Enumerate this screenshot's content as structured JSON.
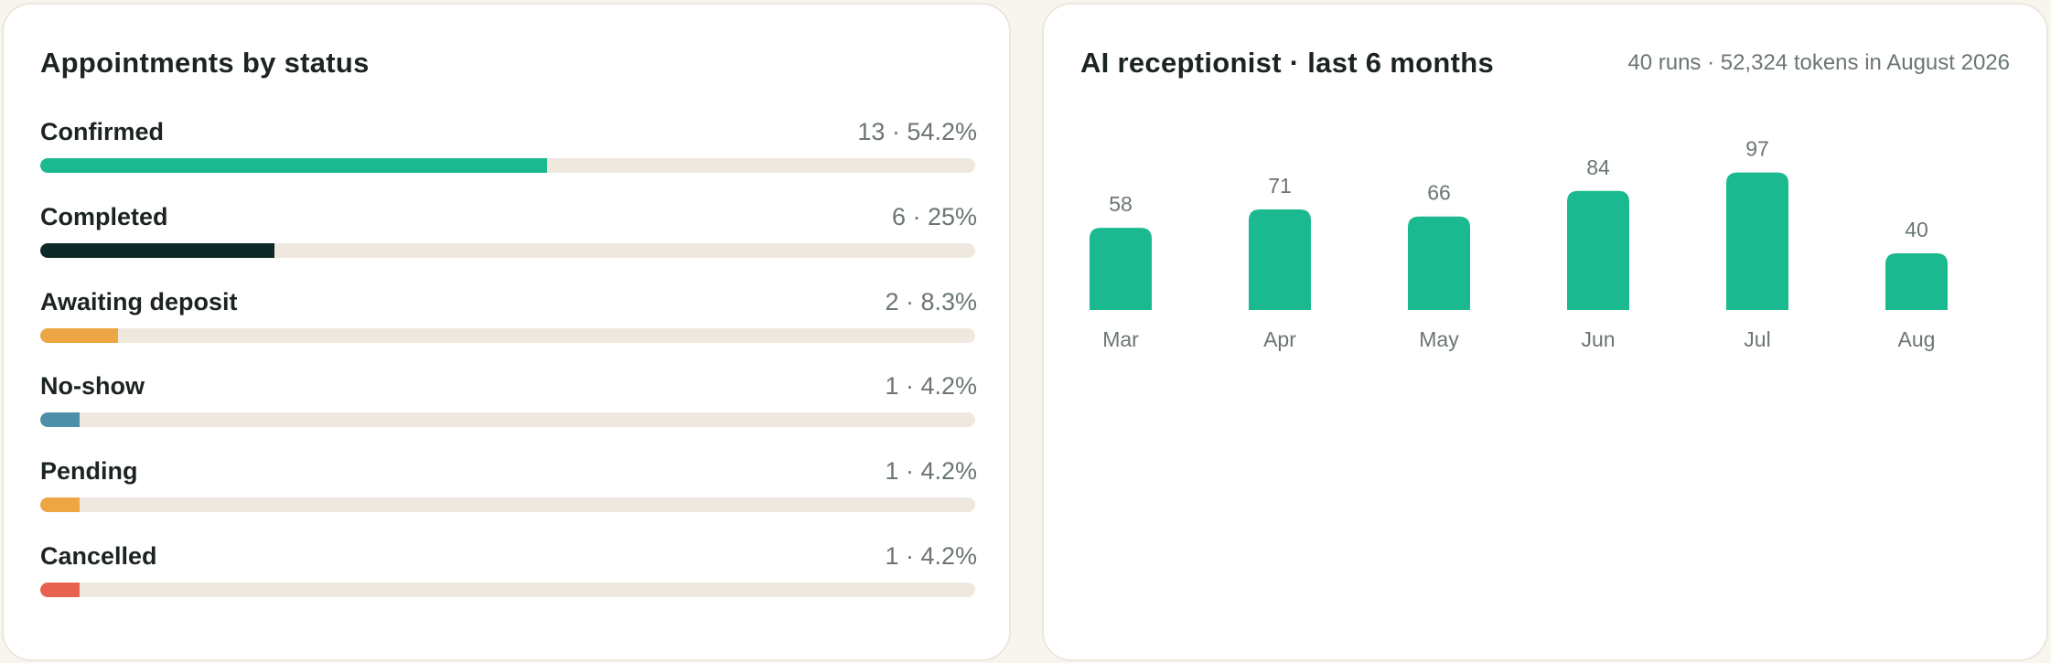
{
  "status_card": {
    "title": "Appointments by status",
    "items": [
      {
        "label": "Confirmed",
        "stat": "13 · 54.2%",
        "fraction": 0.542,
        "color": "#1bb98f"
      },
      {
        "label": "Completed",
        "stat": "6 · 25%",
        "fraction": 0.25,
        "color": "#0f2a26"
      },
      {
        "label": "Awaiting deposit",
        "stat": "2 · 8.3%",
        "fraction": 0.083,
        "color": "#eca643"
      },
      {
        "label": "No-show",
        "stat": "1 · 4.2%",
        "fraction": 0.042,
        "color": "#4d8fa8"
      },
      {
        "label": "Pending",
        "stat": "1 · 4.2%",
        "fraction": 0.042,
        "color": "#eca643"
      },
      {
        "label": "Cancelled",
        "stat": "1 · 4.2%",
        "fraction": 0.042,
        "color": "#e8634f"
      }
    ]
  },
  "receptionist_card": {
    "title": "AI receptionist · last 6 months",
    "summary": "40 runs · 52,324 tokens in August 2026"
  },
  "chart_data": {
    "type": "bar",
    "categories": [
      "Mar",
      "Apr",
      "May",
      "Jun",
      "Jul",
      "Aug"
    ],
    "values": [
      58,
      71,
      66,
      84,
      97,
      40
    ],
    "title": "AI receptionist · last 6 months",
    "xlabel": "",
    "ylabel": "",
    "color": "#1bb98f",
    "grid": false
  }
}
